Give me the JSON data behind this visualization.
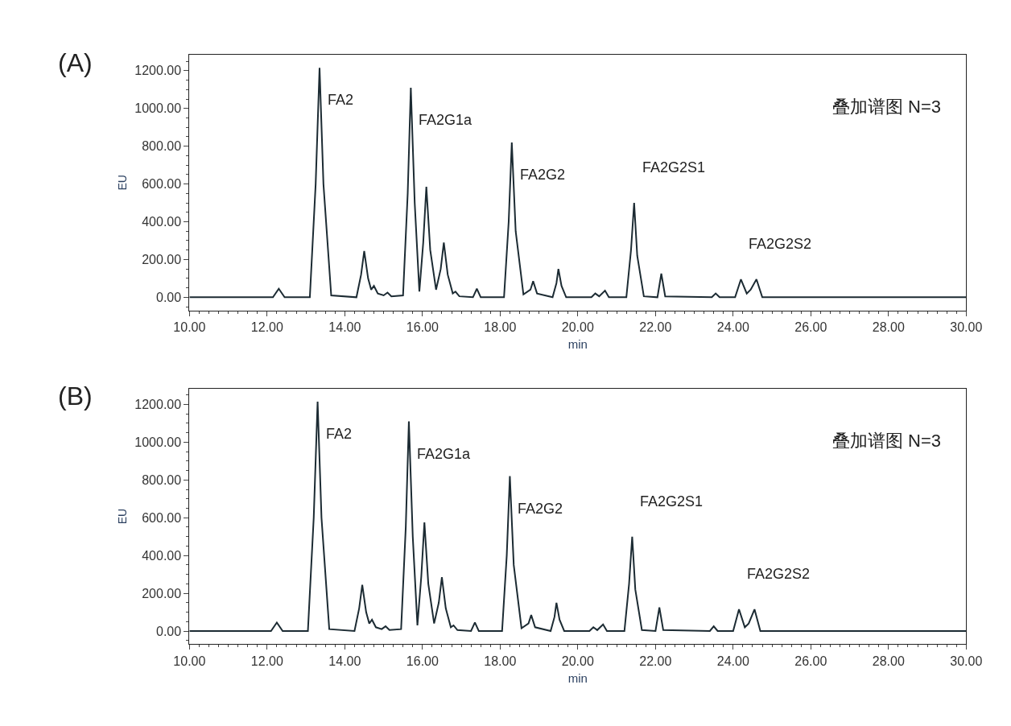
{
  "chart_data": [
    {
      "type": "line",
      "title": "(A)",
      "xlabel": "min",
      "ylabel": "EU",
      "annotations": [
        "叠加谱图 N=3",
        {
          "text": "FA2",
          "x": 13.35,
          "y": 1215
        },
        {
          "text": "FA2G1a",
          "x": 15.7,
          "y": 1110
        },
        {
          "text": "FA2G2",
          "x": 18.3,
          "y": 820
        },
        {
          "text": "FA2G2S1",
          "x": 21.45,
          "y": 500
        },
        {
          "text": "FA2G2S2",
          "x": 24.2,
          "y": 95
        }
      ],
      "series": [
        {
          "color": "#1c2b33",
          "x": [
            10,
            12.15,
            12.3,
            12.45,
            13.1,
            13.25,
            13.35,
            13.45,
            13.65,
            14.3,
            14.42,
            14.5,
            14.6,
            14.68,
            14.75,
            14.85,
            15.0,
            15.1,
            15.2,
            15.5,
            15.62,
            15.7,
            15.8,
            15.92,
            16.02,
            16.1,
            16.2,
            16.35,
            16.47,
            16.55,
            16.65,
            16.78,
            16.85,
            16.95,
            17.3,
            17.4,
            17.5,
            18.1,
            18.22,
            18.3,
            18.4,
            18.6,
            18.78,
            18.85,
            18.95,
            19.35,
            19.45,
            19.5,
            19.58,
            19.7,
            20.35,
            20.45,
            20.55,
            20.7,
            20.8,
            21.25,
            21.37,
            21.45,
            21.53,
            21.7,
            22.05,
            22.15,
            22.25,
            23.45,
            23.55,
            23.65,
            24.05,
            24.2,
            24.35,
            24.45,
            24.6,
            24.75,
            30
          ],
          "values": [
            0,
            0,
            45,
            0,
            0,
            600,
            1215,
            600,
            10,
            0,
            120,
            245,
            100,
            40,
            60,
            20,
            10,
            25,
            5,
            10,
            550,
            1110,
            500,
            30,
            290,
            585,
            250,
            40,
            150,
            290,
            120,
            20,
            30,
            5,
            0,
            45,
            0,
            0,
            400,
            820,
            350,
            15,
            40,
            85,
            20,
            0,
            75,
            150,
            60,
            0,
            0,
            20,
            5,
            35,
            0,
            0,
            250,
            500,
            220,
            5,
            0,
            125,
            5,
            0,
            20,
            0,
            0,
            95,
            20,
            40,
            95,
            0,
            0
          ]
        }
      ],
      "xlim": [
        10,
        30
      ],
      "xticks": [
        {
          "value": 10,
          "label": "10.00"
        },
        {
          "value": 12,
          "label": "12.00"
        },
        {
          "value": 14,
          "label": "14.00"
        },
        {
          "value": 16,
          "label": "16.00"
        },
        {
          "value": 18,
          "label": "18.00"
        },
        {
          "value": 20,
          "label": "20.00"
        },
        {
          "value": 22,
          "label": "22.00"
        },
        {
          "value": 24,
          "label": "24.00"
        },
        {
          "value": 26,
          "label": "26.00"
        },
        {
          "value": 28,
          "label": "28.00"
        },
        {
          "value": 30,
          "label": "30.00"
        }
      ],
      "ylim": [
        -70,
        1285
      ],
      "yticks": [
        {
          "value": 0,
          "label": "0.00"
        },
        {
          "value": 200,
          "label": "200.00"
        },
        {
          "value": 400,
          "label": "400.00"
        },
        {
          "value": 600,
          "label": "600.00"
        },
        {
          "value": 800,
          "label": "800.00"
        },
        {
          "value": 1000,
          "label": "1000.00"
        },
        {
          "value": 1200,
          "label": "1200.00"
        }
      ],
      "marker": "none",
      "line_style": "solid"
    },
    {
      "type": "line",
      "title": "(B)",
      "xlabel": "min",
      "ylabel": "EU",
      "annotations": [
        "叠加谱图 N=3",
        {
          "text": "FA2",
          "x": 13.3,
          "y": 1215
        },
        {
          "text": "FA2G1a",
          "x": 15.65,
          "y": 1110
        },
        {
          "text": "FA2G2",
          "x": 18.25,
          "y": 820
        },
        {
          "text": "FA2G2S1",
          "x": 21.4,
          "y": 500
        },
        {
          "text": "FA2G2S2",
          "x": 24.15,
          "y": 115
        }
      ],
      "series": [
        {
          "color": "#1c2b33",
          "x": [
            10,
            12.1,
            12.25,
            12.4,
            13.05,
            13.2,
            13.3,
            13.4,
            13.6,
            14.25,
            14.37,
            14.45,
            14.55,
            14.63,
            14.7,
            14.8,
            14.95,
            15.05,
            15.15,
            15.45,
            15.57,
            15.65,
            15.75,
            15.87,
            15.97,
            16.05,
            16.15,
            16.3,
            16.42,
            16.5,
            16.6,
            16.73,
            16.8,
            16.9,
            17.25,
            17.35,
            17.45,
            18.05,
            18.17,
            18.25,
            18.35,
            18.55,
            18.73,
            18.8,
            18.9,
            19.3,
            19.4,
            19.45,
            19.53,
            19.65,
            20.3,
            20.4,
            20.5,
            20.65,
            20.75,
            21.2,
            21.32,
            21.4,
            21.48,
            21.65,
            22.0,
            22.1,
            22.2,
            23.4,
            23.5,
            23.6,
            24.0,
            24.15,
            24.3,
            24.4,
            24.55,
            24.7,
            30
          ],
          "values": [
            0,
            0,
            45,
            0,
            0,
            600,
            1215,
            600,
            10,
            0,
            120,
            245,
            100,
            40,
            60,
            20,
            10,
            25,
            5,
            10,
            550,
            1110,
            500,
            30,
            290,
            575,
            250,
            40,
            150,
            285,
            120,
            20,
            30,
            5,
            0,
            45,
            0,
            0,
            400,
            820,
            350,
            15,
            40,
            85,
            20,
            0,
            75,
            150,
            60,
            0,
            0,
            20,
            5,
            35,
            0,
            0,
            250,
            500,
            220,
            5,
            0,
            125,
            5,
            0,
            25,
            0,
            0,
            115,
            20,
            40,
            115,
            0,
            0
          ]
        }
      ],
      "xlim": [
        10,
        30
      ],
      "xticks": [
        {
          "value": 10,
          "label": "10.00"
        },
        {
          "value": 12,
          "label": "12.00"
        },
        {
          "value": 14,
          "label": "14.00"
        },
        {
          "value": 16,
          "label": "16.00"
        },
        {
          "value": 18,
          "label": "18.00"
        },
        {
          "value": 20,
          "label": "20.00"
        },
        {
          "value": 22,
          "label": "22.00"
        },
        {
          "value": 24,
          "label": "24.00"
        },
        {
          "value": 26,
          "label": "26.00"
        },
        {
          "value": 28,
          "label": "28.00"
        },
        {
          "value": 30,
          "label": "30.00"
        }
      ],
      "ylim": [
        -70,
        1285
      ],
      "yticks": [
        {
          "value": 0,
          "label": "0.00"
        },
        {
          "value": 200,
          "label": "200.00"
        },
        {
          "value": 400,
          "label": "400.00"
        },
        {
          "value": 600,
          "label": "600.00"
        },
        {
          "value": 800,
          "label": "800.00"
        },
        {
          "value": 1000,
          "label": "1000.00"
        },
        {
          "value": 1200,
          "label": "1200.00"
        }
      ],
      "marker": "none",
      "line_style": "solid"
    }
  ]
}
